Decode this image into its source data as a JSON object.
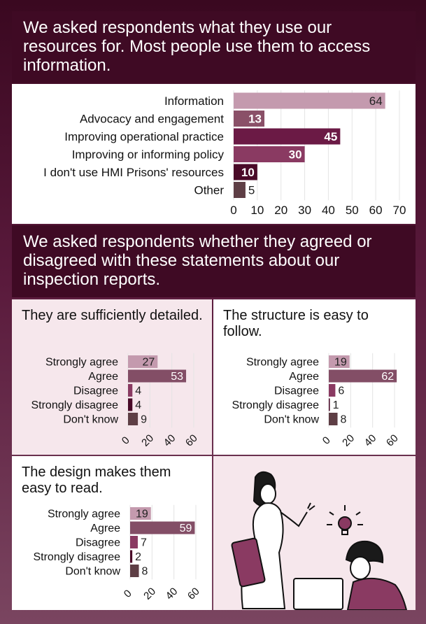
{
  "header1": {
    "text": "We asked respondents what they use our resources for. Most people use them to access information."
  },
  "header2": {
    "text": "We asked respondents whether they agreed or disagreed with these statements about our inspection reports."
  },
  "chart_data": [
    {
      "type": "bar",
      "orientation": "horizontal",
      "title": "",
      "categories": [
        "Information",
        "Advocacy and engagement",
        "Improving operational practice",
        "Improving or informing policy",
        "I don't use HMI Prisons' resources",
        "Other"
      ],
      "values": [
        64,
        13,
        45,
        30,
        10,
        5
      ],
      "colors": [
        "#c49aae",
        "#8a5068",
        "#6b1a45",
        "#8a3a62",
        "#4a0a28",
        "#5e3e45"
      ],
      "xlim": [
        0,
        70
      ],
      "xticks": [
        "0",
        "10",
        "20",
        "30",
        "40",
        "50",
        "60",
        "70"
      ],
      "grid": true
    },
    {
      "type": "bar",
      "orientation": "horizontal",
      "title": "They are sufficiently detailed.",
      "categories": [
        "Strongly agree",
        "Agree",
        "Disagree",
        "Strongly disagree",
        "Don't know"
      ],
      "values": [
        27,
        53,
        4,
        4,
        9
      ],
      "colors": [
        "#c49aae",
        "#834e66",
        "#8a3a62",
        "#4a0a28",
        "#5e3e45"
      ],
      "xlim": [
        0,
        60
      ],
      "xticks": [
        "0",
        "20",
        "40",
        "60"
      ],
      "grid": true
    },
    {
      "type": "bar",
      "orientation": "horizontal",
      "title": "The structure is easy to follow.",
      "categories": [
        "Strongly agree",
        "Agree",
        "Disagree",
        "Strongly disagree",
        "Don't know"
      ],
      "values": [
        19,
        62,
        6,
        1,
        8
      ],
      "colors": [
        "#c49aae",
        "#834e66",
        "#8a3a62",
        "#4a0a28",
        "#5e3e45"
      ],
      "xlim": [
        0,
        60
      ],
      "xticks": [
        "0",
        "20",
        "40",
        "60"
      ],
      "grid": true
    },
    {
      "type": "bar",
      "orientation": "horizontal",
      "title": "The design makes them easy to read.",
      "categories": [
        "Strongly agree",
        "Agree",
        "Disagree",
        "Strongly disagree",
        "Don't know"
      ],
      "values": [
        19,
        59,
        7,
        2,
        8
      ],
      "colors": [
        "#c49aae",
        "#834e66",
        "#8a3a62",
        "#4a0a28",
        "#5e3e45"
      ],
      "xlim": [
        0,
        60
      ],
      "xticks": [
        "0",
        "20",
        "40",
        "60"
      ],
      "grid": true
    }
  ]
}
